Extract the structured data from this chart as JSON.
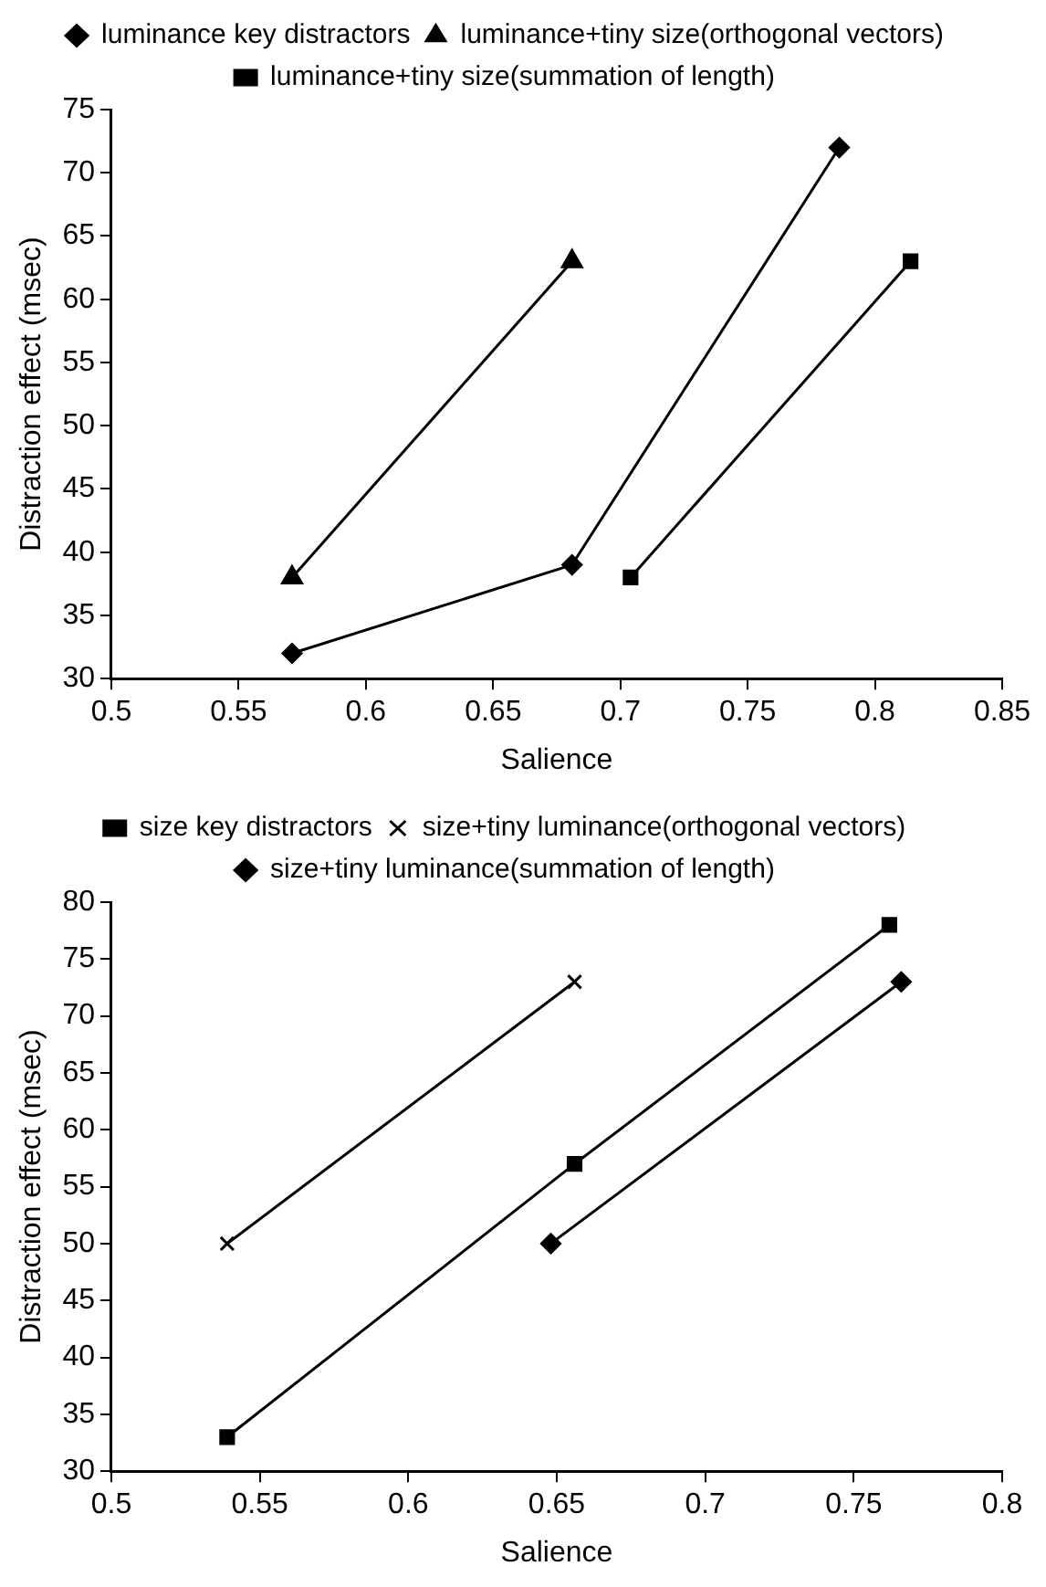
{
  "chart_data": [
    {
      "type": "line",
      "xlabel": "Salience",
      "ylabel": "Distraction effect (msec)",
      "xlim": [
        0.5,
        0.85
      ],
      "xticks": [
        0.5,
        0.55,
        0.6,
        0.65,
        0.7,
        0.75,
        0.8,
        0.85
      ],
      "ylim": [
        30,
        75
      ],
      "yticks": [
        30,
        35,
        40,
        45,
        50,
        55,
        60,
        65,
        70,
        75
      ],
      "grid": false,
      "legend": "top",
      "line_style": "solid",
      "series": [
        {
          "name": "luminance key distractors",
          "color": "#000000",
          "marker": "diamond",
          "x": [
            0.571,
            0.681,
            0.786
          ],
          "values": [
            32,
            39,
            72
          ]
        },
        {
          "name": "luminance+tiny size(orthogonal vectors)",
          "color": "#000000",
          "marker": "triangle",
          "x": [
            0.571,
            0.681
          ],
          "values": [
            38,
            63
          ]
        },
        {
          "name": "luminance+tiny size(summation of length)",
          "color": "#000000",
          "marker": "square",
          "x": [
            0.704,
            0.814
          ],
          "values": [
            38,
            63
          ]
        }
      ]
    },
    {
      "type": "line",
      "xlabel": "Salience",
      "ylabel": "Distraction effect (msec)",
      "xlim": [
        0.5,
        0.8
      ],
      "xticks": [
        0.5,
        0.55,
        0.6,
        0.65,
        0.7,
        0.75,
        0.8
      ],
      "ylim": [
        30,
        80
      ],
      "yticks": [
        30,
        35,
        40,
        45,
        50,
        55,
        60,
        65,
        70,
        75,
        80
      ],
      "grid": false,
      "legend": "top",
      "line_style": "solid",
      "series": [
        {
          "name": "size key distractors",
          "color": "#000000",
          "marker": "square",
          "x": [
            0.539,
            0.656,
            0.762
          ],
          "values": [
            33,
            57,
            78
          ]
        },
        {
          "name": "size+tiny luminance(orthogonal vectors)",
          "color": "#000000",
          "marker": "cross",
          "x": [
            0.539,
            0.656
          ],
          "values": [
            50,
            73
          ]
        },
        {
          "name": "size+tiny luminance(summation of length)",
          "color": "#000000",
          "marker": "diamond",
          "x": [
            0.648,
            0.766
          ],
          "values": [
            50,
            73
          ]
        }
      ]
    }
  ]
}
